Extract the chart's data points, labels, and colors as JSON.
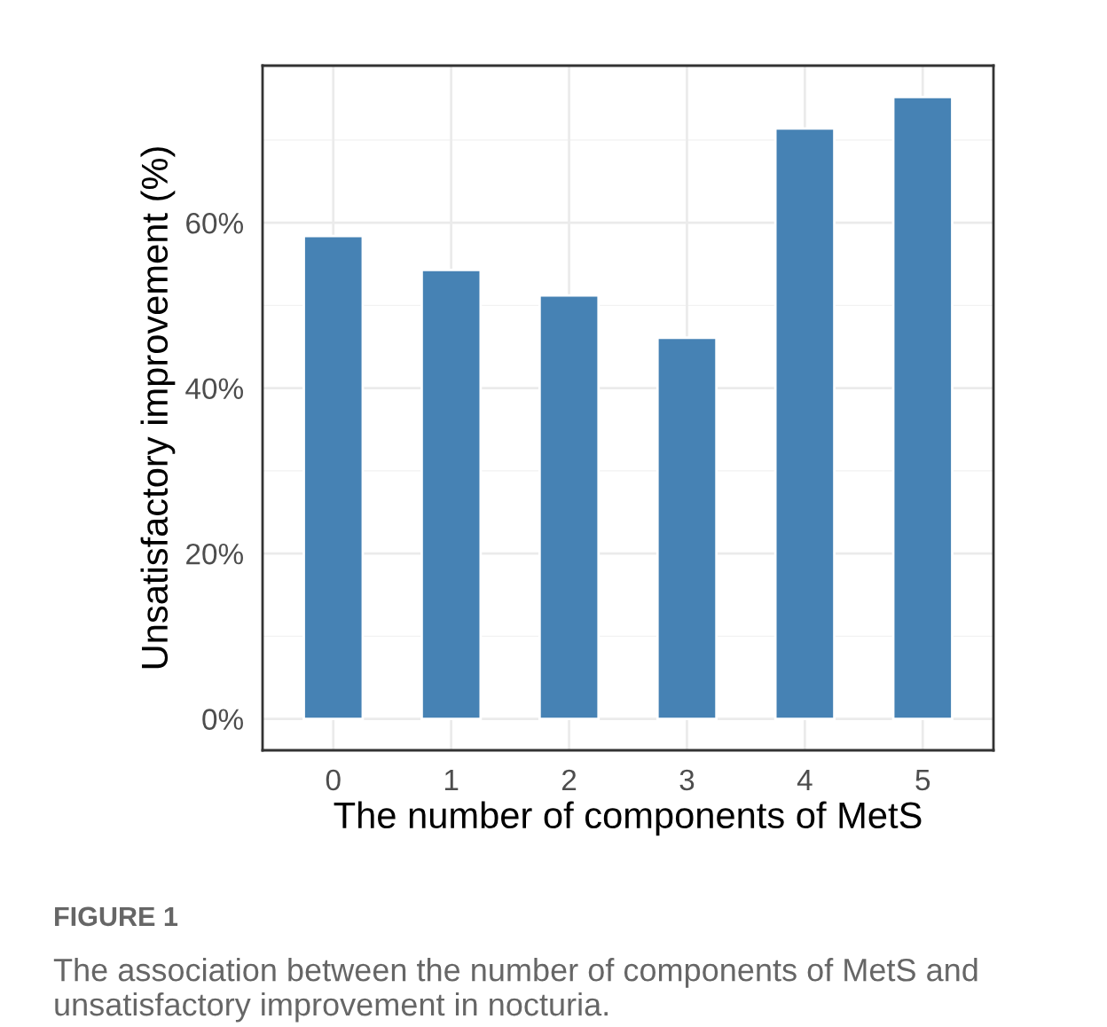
{
  "chart_data": {
    "type": "bar",
    "categories": [
      "0",
      "1",
      "2",
      "3",
      "4",
      "5"
    ],
    "values": [
      58.4,
      54.3,
      51.2,
      46.1,
      71.4,
      75.2
    ],
    "color": "#4682b4",
    "xlabel": "The number of components of MetS",
    "ylabel": "Unsatisfactory improvement (%)",
    "ylim": [
      -3.8,
      79
    ],
    "yticks": [
      {
        "value": 0,
        "label": "0%"
      },
      {
        "value": 20,
        "label": "20%"
      },
      {
        "value": 40,
        "label": "40%"
      },
      {
        "value": 60,
        "label": "60%"
      }
    ],
    "grid": true,
    "annotations": [
      "FIGURE 1",
      "The association between the number of components of MetS and unsatisfactory improvement in nocturia."
    ]
  }
}
